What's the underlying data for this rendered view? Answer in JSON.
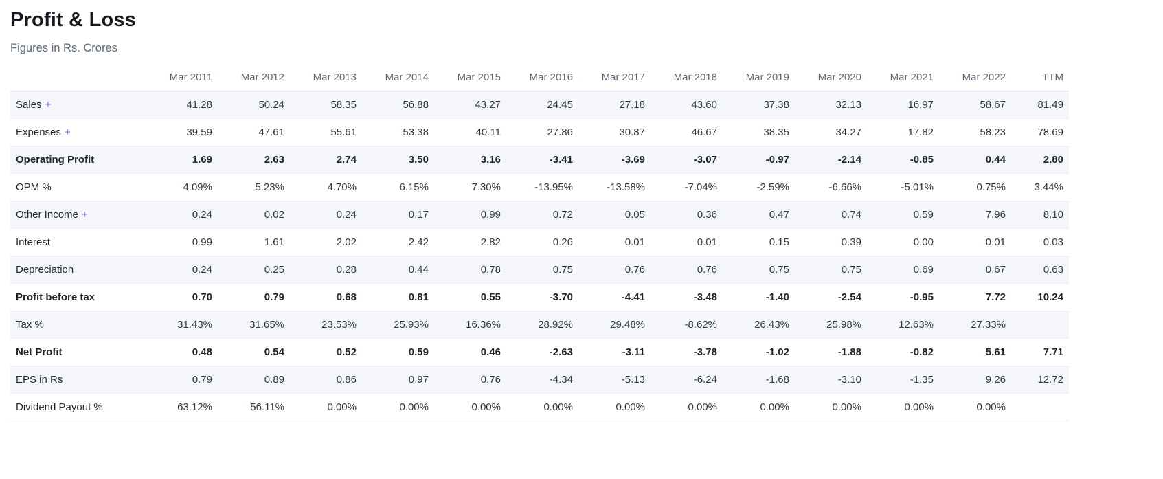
{
  "page": {
    "title": "Profit & Loss",
    "subtitle": "Figures in Rs. Crores"
  },
  "colors": {
    "accent": "#7567f0",
    "stripe_row": "#f5f6fa",
    "header_text": "#5f6b7a",
    "title_text": "#15191e"
  },
  "table": {
    "expand_symbol": "+",
    "columns": [
      "Mar 2011",
      "Mar 2012",
      "Mar 2013",
      "Mar 2014",
      "Mar 2015",
      "Mar 2016",
      "Mar 2017",
      "Mar 2018",
      "Mar 2019",
      "Mar 2020",
      "Mar 2021",
      "Mar 2022",
      "TTM"
    ],
    "rows": [
      {
        "label": "Sales",
        "expandable": true,
        "bold": false,
        "values": [
          "41.28",
          "50.24",
          "58.35",
          "56.88",
          "43.27",
          "24.45",
          "27.18",
          "43.60",
          "37.38",
          "32.13",
          "16.97",
          "58.67",
          "81.49"
        ]
      },
      {
        "label": "Expenses",
        "expandable": true,
        "bold": false,
        "values": [
          "39.59",
          "47.61",
          "55.61",
          "53.38",
          "40.11",
          "27.86",
          "30.87",
          "46.67",
          "38.35",
          "34.27",
          "17.82",
          "58.23",
          "78.69"
        ]
      },
      {
        "label": "Operating Profit",
        "expandable": false,
        "bold": true,
        "values": [
          "1.69",
          "2.63",
          "2.74",
          "3.50",
          "3.16",
          "-3.41",
          "-3.69",
          "-3.07",
          "-0.97",
          "-2.14",
          "-0.85",
          "0.44",
          "2.80"
        ]
      },
      {
        "label": "OPM %",
        "expandable": false,
        "bold": false,
        "values": [
          "4.09%",
          "5.23%",
          "4.70%",
          "6.15%",
          "7.30%",
          "-13.95%",
          "-13.58%",
          "-7.04%",
          "-2.59%",
          "-6.66%",
          "-5.01%",
          "0.75%",
          "3.44%"
        ]
      },
      {
        "label": "Other Income",
        "expandable": true,
        "bold": false,
        "values": [
          "0.24",
          "0.02",
          "0.24",
          "0.17",
          "0.99",
          "0.72",
          "0.05",
          "0.36",
          "0.47",
          "0.74",
          "0.59",
          "7.96",
          "8.10"
        ]
      },
      {
        "label": "Interest",
        "expandable": false,
        "bold": false,
        "values": [
          "0.99",
          "1.61",
          "2.02",
          "2.42",
          "2.82",
          "0.26",
          "0.01",
          "0.01",
          "0.15",
          "0.39",
          "0.00",
          "0.01",
          "0.03"
        ]
      },
      {
        "label": "Depreciation",
        "expandable": false,
        "bold": false,
        "values": [
          "0.24",
          "0.25",
          "0.28",
          "0.44",
          "0.78",
          "0.75",
          "0.76",
          "0.76",
          "0.75",
          "0.75",
          "0.69",
          "0.67",
          "0.63"
        ]
      },
      {
        "label": "Profit before tax",
        "expandable": false,
        "bold": true,
        "values": [
          "0.70",
          "0.79",
          "0.68",
          "0.81",
          "0.55",
          "-3.70",
          "-4.41",
          "-3.48",
          "-1.40",
          "-2.54",
          "-0.95",
          "7.72",
          "10.24"
        ]
      },
      {
        "label": "Tax %",
        "expandable": false,
        "bold": false,
        "values": [
          "31.43%",
          "31.65%",
          "23.53%",
          "25.93%",
          "16.36%",
          "28.92%",
          "29.48%",
          "-8.62%",
          "26.43%",
          "25.98%",
          "12.63%",
          "27.33%",
          ""
        ]
      },
      {
        "label": "Net Profit",
        "expandable": false,
        "bold": true,
        "values": [
          "0.48",
          "0.54",
          "0.52",
          "0.59",
          "0.46",
          "-2.63",
          "-3.11",
          "-3.78",
          "-1.02",
          "-1.88",
          "-0.82",
          "5.61",
          "7.71"
        ]
      },
      {
        "label": "EPS in Rs",
        "expandable": false,
        "bold": false,
        "values": [
          "0.79",
          "0.89",
          "0.86",
          "0.97",
          "0.76",
          "-4.34",
          "-5.13",
          "-6.24",
          "-1.68",
          "-3.10",
          "-1.35",
          "9.26",
          "12.72"
        ]
      },
      {
        "label": "Dividend Payout %",
        "expandable": false,
        "bold": false,
        "values": [
          "63.12%",
          "56.11%",
          "0.00%",
          "0.00%",
          "0.00%",
          "0.00%",
          "0.00%",
          "0.00%",
          "0.00%",
          "0.00%",
          "0.00%",
          "0.00%",
          ""
        ]
      }
    ]
  }
}
